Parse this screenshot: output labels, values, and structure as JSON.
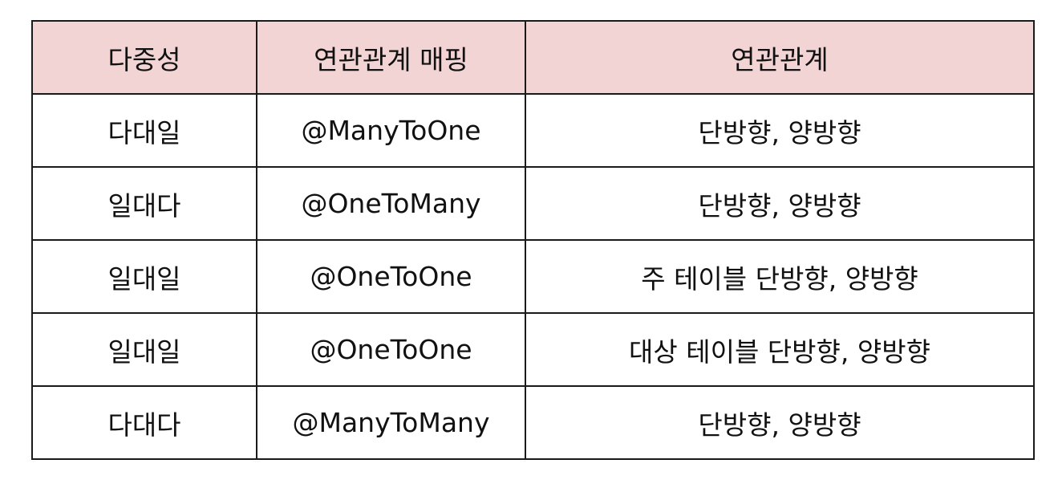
{
  "table": {
    "headers": [
      "다중성",
      "연관관계 매핑",
      "연관관계"
    ],
    "rows": [
      [
        "다대일",
        "@ManyToOne",
        "단방향, 양방향"
      ],
      [
        "일대다",
        "@OneToMany",
        "단방향, 양방향"
      ],
      [
        "일대일",
        "@OneToOne",
        "주 테이블 단방향, 양방향"
      ],
      [
        "일대일",
        "@OneToOne",
        "대상 테이블 단방향, 양방향"
      ],
      [
        "다대다",
        "@ManyToMany",
        "단방향, 양방향"
      ]
    ]
  },
  "colors": {
    "header_background": "#f1d4d3",
    "border": "#1a1a1a",
    "text": "#111111"
  }
}
